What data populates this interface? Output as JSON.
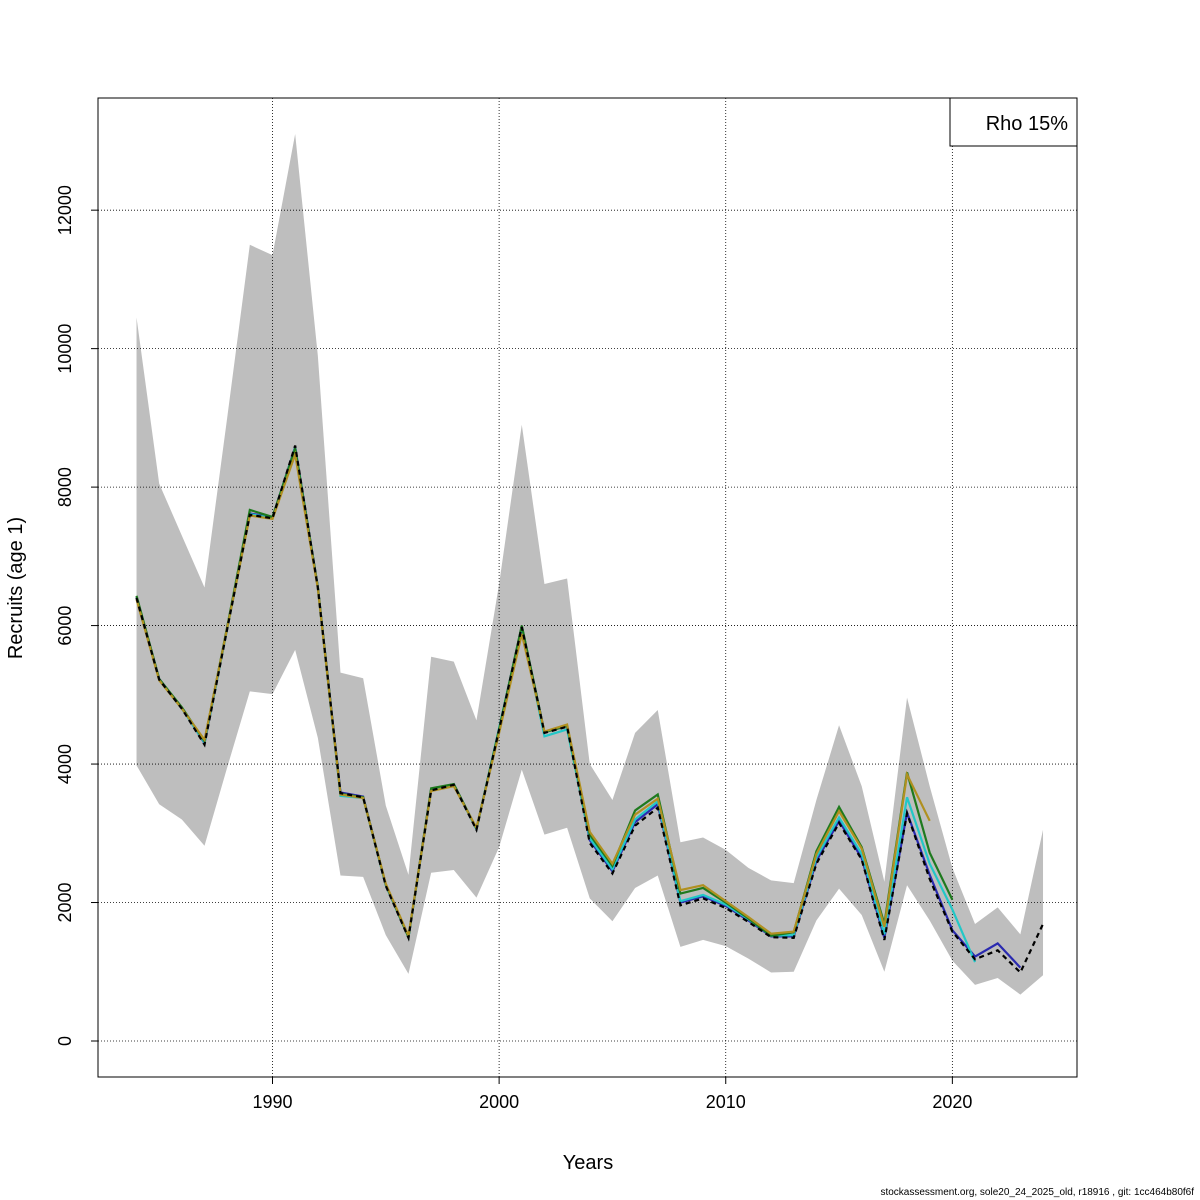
{
  "chart_data": {
    "type": "line",
    "title": "",
    "xlabel": "Years",
    "ylabel": "Recruits (age 1)",
    "xlim": [
      1982.3,
      2025.5
    ],
    "ylim": [
      -520,
      13620
    ],
    "x_ticks": [
      1990,
      2000,
      2010,
      2020
    ],
    "y_ticks": [
      0,
      2000,
      4000,
      6000,
      8000,
      10000,
      12000
    ],
    "grid": true,
    "legend": {
      "placement": "top-right",
      "text": "Rho 15%"
    },
    "confidence_band": {
      "color": "#bebebe",
      "years": [
        1984,
        1985,
        1986,
        1987,
        1988,
        1989,
        1990,
        1991,
        1992,
        1993,
        1994,
        1995,
        1996,
        1997,
        1998,
        1999,
        2000,
        2001,
        2002,
        2003,
        2004,
        2005,
        2006,
        2007,
        2008,
        2009,
        2010,
        2011,
        2012,
        2013,
        2014,
        2015,
        2016,
        2017,
        2018,
        2019,
        2020,
        2021,
        2022,
        2023,
        2024
      ],
      "upper": [
        10450,
        8050,
        7300,
        6550,
        9000,
        11500,
        11350,
        13100,
        9900,
        5320,
        5240,
        3400,
        2400,
        5550,
        5480,
        4630,
        6600,
        8900,
        6600,
        6680,
        4000,
        3480,
        4450,
        4780,
        2870,
        2940,
        2760,
        2500,
        2320,
        2280,
        3480,
        4560,
        3680,
        2300,
        4960,
        3680,
        2500,
        1690,
        1930,
        1540,
        3050
      ],
      "lower": [
        3980,
        3420,
        3200,
        2820,
        3950,
        5050,
        5010,
        5650,
        4380,
        2390,
        2370,
        1530,
        970,
        2430,
        2470,
        2070,
        2800,
        3920,
        2980,
        3080,
        2060,
        1730,
        2210,
        2390,
        1360,
        1460,
        1370,
        1190,
        990,
        1000,
        1740,
        2200,
        1820,
        1000,
        2250,
        1740,
        1160,
        810,
        910,
        670,
        950
      ]
    },
    "years": [
      1984,
      1985,
      1986,
      1987,
      1988,
      1989,
      1990,
      1991,
      1992,
      1993,
      1994,
      1995,
      1996,
      1997,
      1998,
      1999,
      2000,
      2001,
      2002,
      2003,
      2004,
      2005,
      2006,
      2007,
      2008,
      2009,
      2010,
      2011,
      2012,
      2013,
      2014,
      2015,
      2016,
      2017,
      2018,
      2019,
      2020,
      2021,
      2022,
      2023,
      2024
    ],
    "series": [
      {
        "color": "#000000",
        "dashed": true,
        "values": [
          6400,
          5220,
          4800,
          4280,
          5950,
          7600,
          7550,
          8600,
          6550,
          3580,
          3520,
          2240,
          1490,
          3620,
          3700,
          3050,
          4500,
          5980,
          4450,
          4540,
          2860,
          2420,
          3110,
          3370,
          1960,
          2060,
          1920,
          1720,
          1500,
          1490,
          2560,
          3150,
          2620,
          1460,
          3290,
          2340,
          1580,
          1180,
          1310,
          990,
          1690
        ]
      },
      {
        "color": "#2a2ab0",
        "dashed": false,
        "values": [
          6410,
          5230,
          4810,
          4300,
          5960,
          7620,
          7560,
          8580,
          6560,
          3590,
          3530,
          2250,
          1500,
          3630,
          3710,
          3060,
          4510,
          5990,
          4460,
          4550,
          2900,
          2450,
          3160,
          3420,
          2000,
          2090,
          1950,
          1740,
          1510,
          1510,
          2600,
          3180,
          2640,
          1490,
          3300,
          2400,
          1600,
          1220,
          1410,
          1060
        ]
      },
      {
        "color": "#22c7c7",
        "dashed": false,
        "values": [
          6400,
          5220,
          4800,
          4310,
          5950,
          7610,
          7550,
          8570,
          6550,
          3540,
          3510,
          2250,
          1500,
          3620,
          3700,
          3060,
          4520,
          5970,
          4400,
          4500,
          2930,
          2480,
          3200,
          3460,
          2020,
          2110,
          1970,
          1760,
          1520,
          1530,
          2650,
          3230,
          2700,
          1540,
          3520,
          2560,
          1900,
          1140
        ]
      },
      {
        "color": "#1e7a1e",
        "dashed": false,
        "values": [
          6430,
          5230,
          4820,
          4330,
          5980,
          7670,
          7570,
          8560,
          6560,
          3570,
          3520,
          2260,
          1500,
          3650,
          3710,
          3070,
          4500,
          6000,
          4460,
          4550,
          2980,
          2530,
          3330,
          3560,
          2130,
          2210,
          2000,
          1770,
          1520,
          1570,
          2740,
          3380,
          2800,
          1690,
          3880,
          2720,
          2040
        ]
      },
      {
        "color": "#b09020",
        "dashed": false,
        "values": [
          6380,
          5210,
          4800,
          4350,
          5960,
          7590,
          7540,
          8470,
          6540,
          3560,
          3510,
          2270,
          1520,
          3610,
          3680,
          3080,
          4450,
          5880,
          4470,
          4570,
          3020,
          2560,
          3270,
          3500,
          2180,
          2250,
          2020,
          1790,
          1550,
          1580,
          2700,
          3320,
          2780,
          1650,
          3850,
          3180
        ]
      }
    ]
  },
  "footer": "stockassessment.org, sole20_24_2025_old, r18916 , git: 1cc464b80f6f"
}
